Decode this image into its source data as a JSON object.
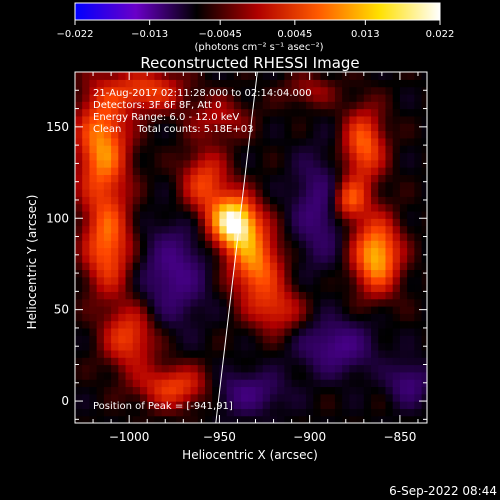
{
  "chart_data": {
    "type": "heatmap",
    "title": "Reconstructed RHESSI Image",
    "xlabel": "Heliocentric X (arcsec)",
    "ylabel": "Heliocentric Y (arcsec)",
    "xlim": [
      -1030,
      -835
    ],
    "ylim": [
      -12,
      180
    ],
    "x_ticks": [
      -1000,
      -950,
      -900,
      -850
    ],
    "x_tick_labels": [
      "−1000",
      "−950",
      "−900",
      "−850"
    ],
    "y_ticks": [
      0,
      50,
      100,
      150
    ],
    "y_tick_labels": [
      "0",
      "50",
      "100",
      "150"
    ],
    "colorbar": {
      "min": -0.022,
      "max": 0.022,
      "ticks": [
        -0.022,
        -0.013,
        -0.0045,
        0.0045,
        0.013,
        0.022
      ],
      "tick_labels": [
        "−0.022",
        "−0.013",
        "−0.0045",
        "0.0045",
        "0.013",
        "0.022"
      ],
      "unit_text": "(photons cm⁻² s⁻¹ asec⁻²)",
      "colors": [
        "#0000ff",
        "#6a00c8",
        "#000000",
        "#b00000",
        "#ff5a00",
        "#ffe000",
        "#ffffff"
      ]
    },
    "annotations": [
      "21-Aug-2017 02:11:28.000 to 02:14:04.000",
      "Detectors: 3F 6F 8F, Att 0",
      "Energy Range: 6.0 - 12.0 keV",
      "Clean     Total counts: 5.18E+03"
    ],
    "peak_label": "Position of Peak = [-941,91]",
    "peak": {
      "x": -941,
      "y": 91
    },
    "limb_line": [
      {
        "x": -952,
        "y": -12
      },
      {
        "x": -929,
        "y": 180
      }
    ],
    "sources": [
      {
        "x": -942,
        "y": 98,
        "sx": 9,
        "sy": 10,
        "amp": 1.0
      },
      {
        "x": -930,
        "y": 75,
        "sx": 10,
        "sy": 14,
        "amp": 0.6
      },
      {
        "x": -958,
        "y": 120,
        "sx": 9,
        "sy": 12,
        "amp": 0.45
      },
      {
        "x": -918,
        "y": 50,
        "sx": 10,
        "sy": 9,
        "amp": 0.35
      },
      {
        "x": -1015,
        "y": 140,
        "sx": 10,
        "sy": 22,
        "amp": 0.65
      },
      {
        "x": -1012,
        "y": 85,
        "sx": 9,
        "sy": 18,
        "amp": 0.55
      },
      {
        "x": -1000,
        "y": 35,
        "sx": 10,
        "sy": 12,
        "amp": 0.45
      },
      {
        "x": -975,
        "y": 8,
        "sx": 14,
        "sy": 8,
        "amp": 0.45
      },
      {
        "x": -990,
        "y": 170,
        "sx": 14,
        "sy": 8,
        "amp": 0.45
      },
      {
        "x": -870,
        "y": 140,
        "sx": 8,
        "sy": 14,
        "amp": 0.55
      },
      {
        "x": -863,
        "y": 80,
        "sx": 9,
        "sy": 14,
        "amp": 0.75
      },
      {
        "x": -878,
        "y": 110,
        "sx": 7,
        "sy": 8,
        "amp": 0.5
      },
      {
        "x": -950,
        "y": 155,
        "sx": 12,
        "sy": 8,
        "amp": 0.25
      },
      {
        "x": -900,
        "y": 170,
        "sx": 10,
        "sy": 6,
        "amp": 0.22
      }
    ],
    "negative_sources": [
      {
        "x": -975,
        "y": 70,
        "sx": 12,
        "sy": 18,
        "amp": 0.35
      },
      {
        "x": -895,
        "y": 105,
        "sx": 10,
        "sy": 20,
        "amp": 0.3
      },
      {
        "x": -885,
        "y": 30,
        "sx": 14,
        "sy": 10,
        "amp": 0.35
      },
      {
        "x": -935,
        "y": 5,
        "sx": 14,
        "sy": 8,
        "amp": 0.3
      },
      {
        "x": -845,
        "y": 10,
        "sx": 8,
        "sy": 8,
        "amp": 0.3
      }
    ]
  },
  "timestamp": "6-Sep-2022 08:44"
}
